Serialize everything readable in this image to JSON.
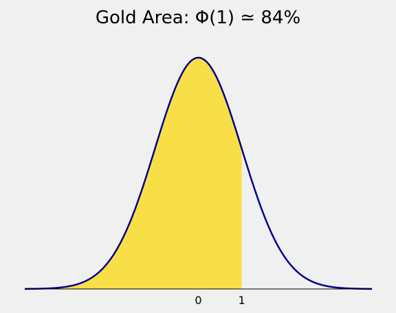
{
  "chart_data": {
    "type": "area",
    "title": "Gold Area: Φ(1) ≃ 84%",
    "xlabel": "",
    "ylabel": "",
    "xlim": [
      -4,
      4
    ],
    "ylim": [
      0,
      0.4
    ],
    "grid": false,
    "curve": "standard normal density",
    "shaded_region": {
      "from": -4,
      "to": 1,
      "area": 0.84
    },
    "x_ticks": [
      0,
      1
    ],
    "x_tick_labels": [
      "0",
      "1"
    ],
    "colors": {
      "curve": "#00008b",
      "fill": "#f9df47",
      "axis": "#000000",
      "background": "#f0f0f0"
    }
  }
}
